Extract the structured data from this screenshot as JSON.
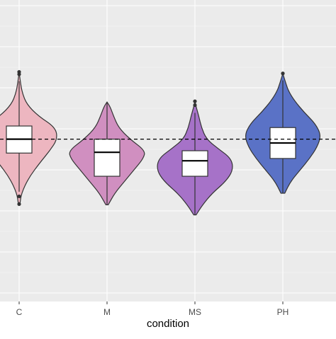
{
  "chart_data": {
    "type": "violin",
    "categories": [
      "C",
      "M",
      "MS",
      "PH"
    ],
    "xlabel": "condition",
    "ylabel": "",
    "title": "",
    "grid": true,
    "legend": "none",
    "reference_line": {
      "style": "dashed",
      "value": 0.0
    },
    "ylim": [
      -2.1,
      1.8
    ],
    "series": [
      {
        "category": "C",
        "color": "#edb6c0",
        "box": {
          "q1": -0.18,
          "median": 0.0,
          "q3": 0.17
        },
        "whisker": {
          "low": -0.68,
          "high": 0.75
        },
        "outliers": [
          0.84,
          0.87,
          -0.74,
          -0.84
        ],
        "violin_min": -0.84,
        "violin_max": 0.87,
        "density": [
          [
            -0.84,
            0.02
          ],
          [
            -0.7,
            0.06
          ],
          [
            -0.5,
            0.25
          ],
          [
            -0.3,
            0.55
          ],
          [
            -0.15,
            0.8
          ],
          [
            0.0,
            1.0
          ],
          [
            0.15,
            0.95
          ],
          [
            0.3,
            0.5
          ],
          [
            0.45,
            0.2
          ],
          [
            0.6,
            0.08
          ],
          [
            0.75,
            0.03
          ],
          [
            0.87,
            0.0
          ]
        ]
      },
      {
        "category": "M",
        "color": "#d08fc0",
        "box": {
          "q1": -0.48,
          "median": -0.17,
          "q3": 0.0
        },
        "whisker": {
          "low": -0.85,
          "high": 0.48
        },
        "outliers": [],
        "violin_min": -0.85,
        "violin_max": 0.48,
        "density": [
          [
            -0.85,
            0.03
          ],
          [
            -0.7,
            0.2
          ],
          [
            -0.55,
            0.45
          ],
          [
            -0.4,
            0.7
          ],
          [
            -0.25,
            0.95
          ],
          [
            -0.15,
            1.0
          ],
          [
            0.0,
            0.6
          ],
          [
            0.15,
            0.3
          ],
          [
            0.3,
            0.17
          ],
          [
            0.42,
            0.08
          ],
          [
            0.48,
            0.0
          ]
        ]
      },
      {
        "category": "MS",
        "color": "#a672c8",
        "box": {
          "q1": -0.48,
          "median": -0.28,
          "q3": -0.15
        },
        "whisker": {
          "low": -0.98,
          "high": 0.34
        },
        "outliers": [
          0.44,
          0.49
        ],
        "violin_min": -0.98,
        "violin_max": 0.5,
        "density": [
          [
            -0.98,
            0.03
          ],
          [
            -0.85,
            0.2
          ],
          [
            -0.7,
            0.45
          ],
          [
            -0.55,
            0.8
          ],
          [
            -0.4,
            1.0
          ],
          [
            -0.25,
            0.95
          ],
          [
            -0.12,
            0.6
          ],
          [
            0.0,
            0.3
          ],
          [
            0.15,
            0.17
          ],
          [
            0.3,
            0.1
          ],
          [
            0.42,
            0.03
          ],
          [
            0.5,
            0.0
          ]
        ]
      },
      {
        "category": "PH",
        "color": "#5a72c6",
        "box": {
          "q1": -0.25,
          "median": -0.05,
          "q3": 0.15
        },
        "whisker": {
          "low": -0.7,
          "high": 0.76
        },
        "outliers": [
          0.85
        ],
        "violin_min": -0.7,
        "violin_max": 0.85,
        "density": [
          [
            -0.7,
            0.05
          ],
          [
            -0.55,
            0.2
          ],
          [
            -0.4,
            0.45
          ],
          [
            -0.25,
            0.7
          ],
          [
            -0.1,
            0.9
          ],
          [
            0.05,
            1.0
          ],
          [
            0.2,
            0.85
          ],
          [
            0.35,
            0.55
          ],
          [
            0.5,
            0.3
          ],
          [
            0.62,
            0.15
          ],
          [
            0.72,
            0.08
          ],
          [
            0.85,
            0.0
          ]
        ]
      }
    ]
  }
}
